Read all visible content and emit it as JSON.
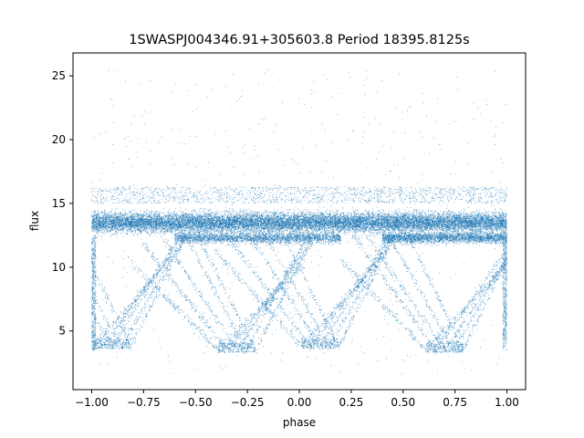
{
  "chart_data": {
    "type": "scatter",
    "title": "1SWASPJ004346.91+305603.8 Period 18395.8125s",
    "xlabel": "phase",
    "ylabel": "flux",
    "xlim": [
      -1.09,
      1.09
    ],
    "ylim": [
      0.4,
      26.8
    ],
    "xticks": [
      -1.0,
      -0.75,
      -0.5,
      -0.25,
      0.0,
      0.25,
      0.5,
      0.75,
      1.0
    ],
    "xtick_labels": [
      "−1.00",
      "−0.75",
      "−0.50",
      "−0.25",
      "0.00",
      "0.25",
      "0.50",
      "0.75",
      "1.00"
    ],
    "yticks": [
      5,
      10,
      15,
      20,
      25
    ],
    "ytick_labels": [
      "5",
      "10",
      "15",
      "20",
      "25"
    ],
    "grid": false,
    "point_color": "#1f77b4",
    "series": [
      {
        "x_range": [
          -1.0,
          1.0
        ],
        "main_band": {
          "center": 13.5,
          "spread": 1.2,
          "range": [
            11.5,
            15.5
          ]
        },
        "secondary_band": {
          "center": 12.3,
          "x_ranges": [
            [
              -0.6,
              0.2
            ],
            [
              0.4,
              1.0
            ]
          ]
        },
        "eclipse_minima": [
          {
            "phase": -0.9,
            "flux": 3.8
          },
          {
            "phase": -0.3,
            "flux": 3.5
          },
          {
            "phase": 0.1,
            "flux": 3.8
          },
          {
            "phase": 0.7,
            "flux": 3.5
          }
        ],
        "outlier_flux_range": [
          1.5,
          25.5
        ]
      }
    ]
  }
}
